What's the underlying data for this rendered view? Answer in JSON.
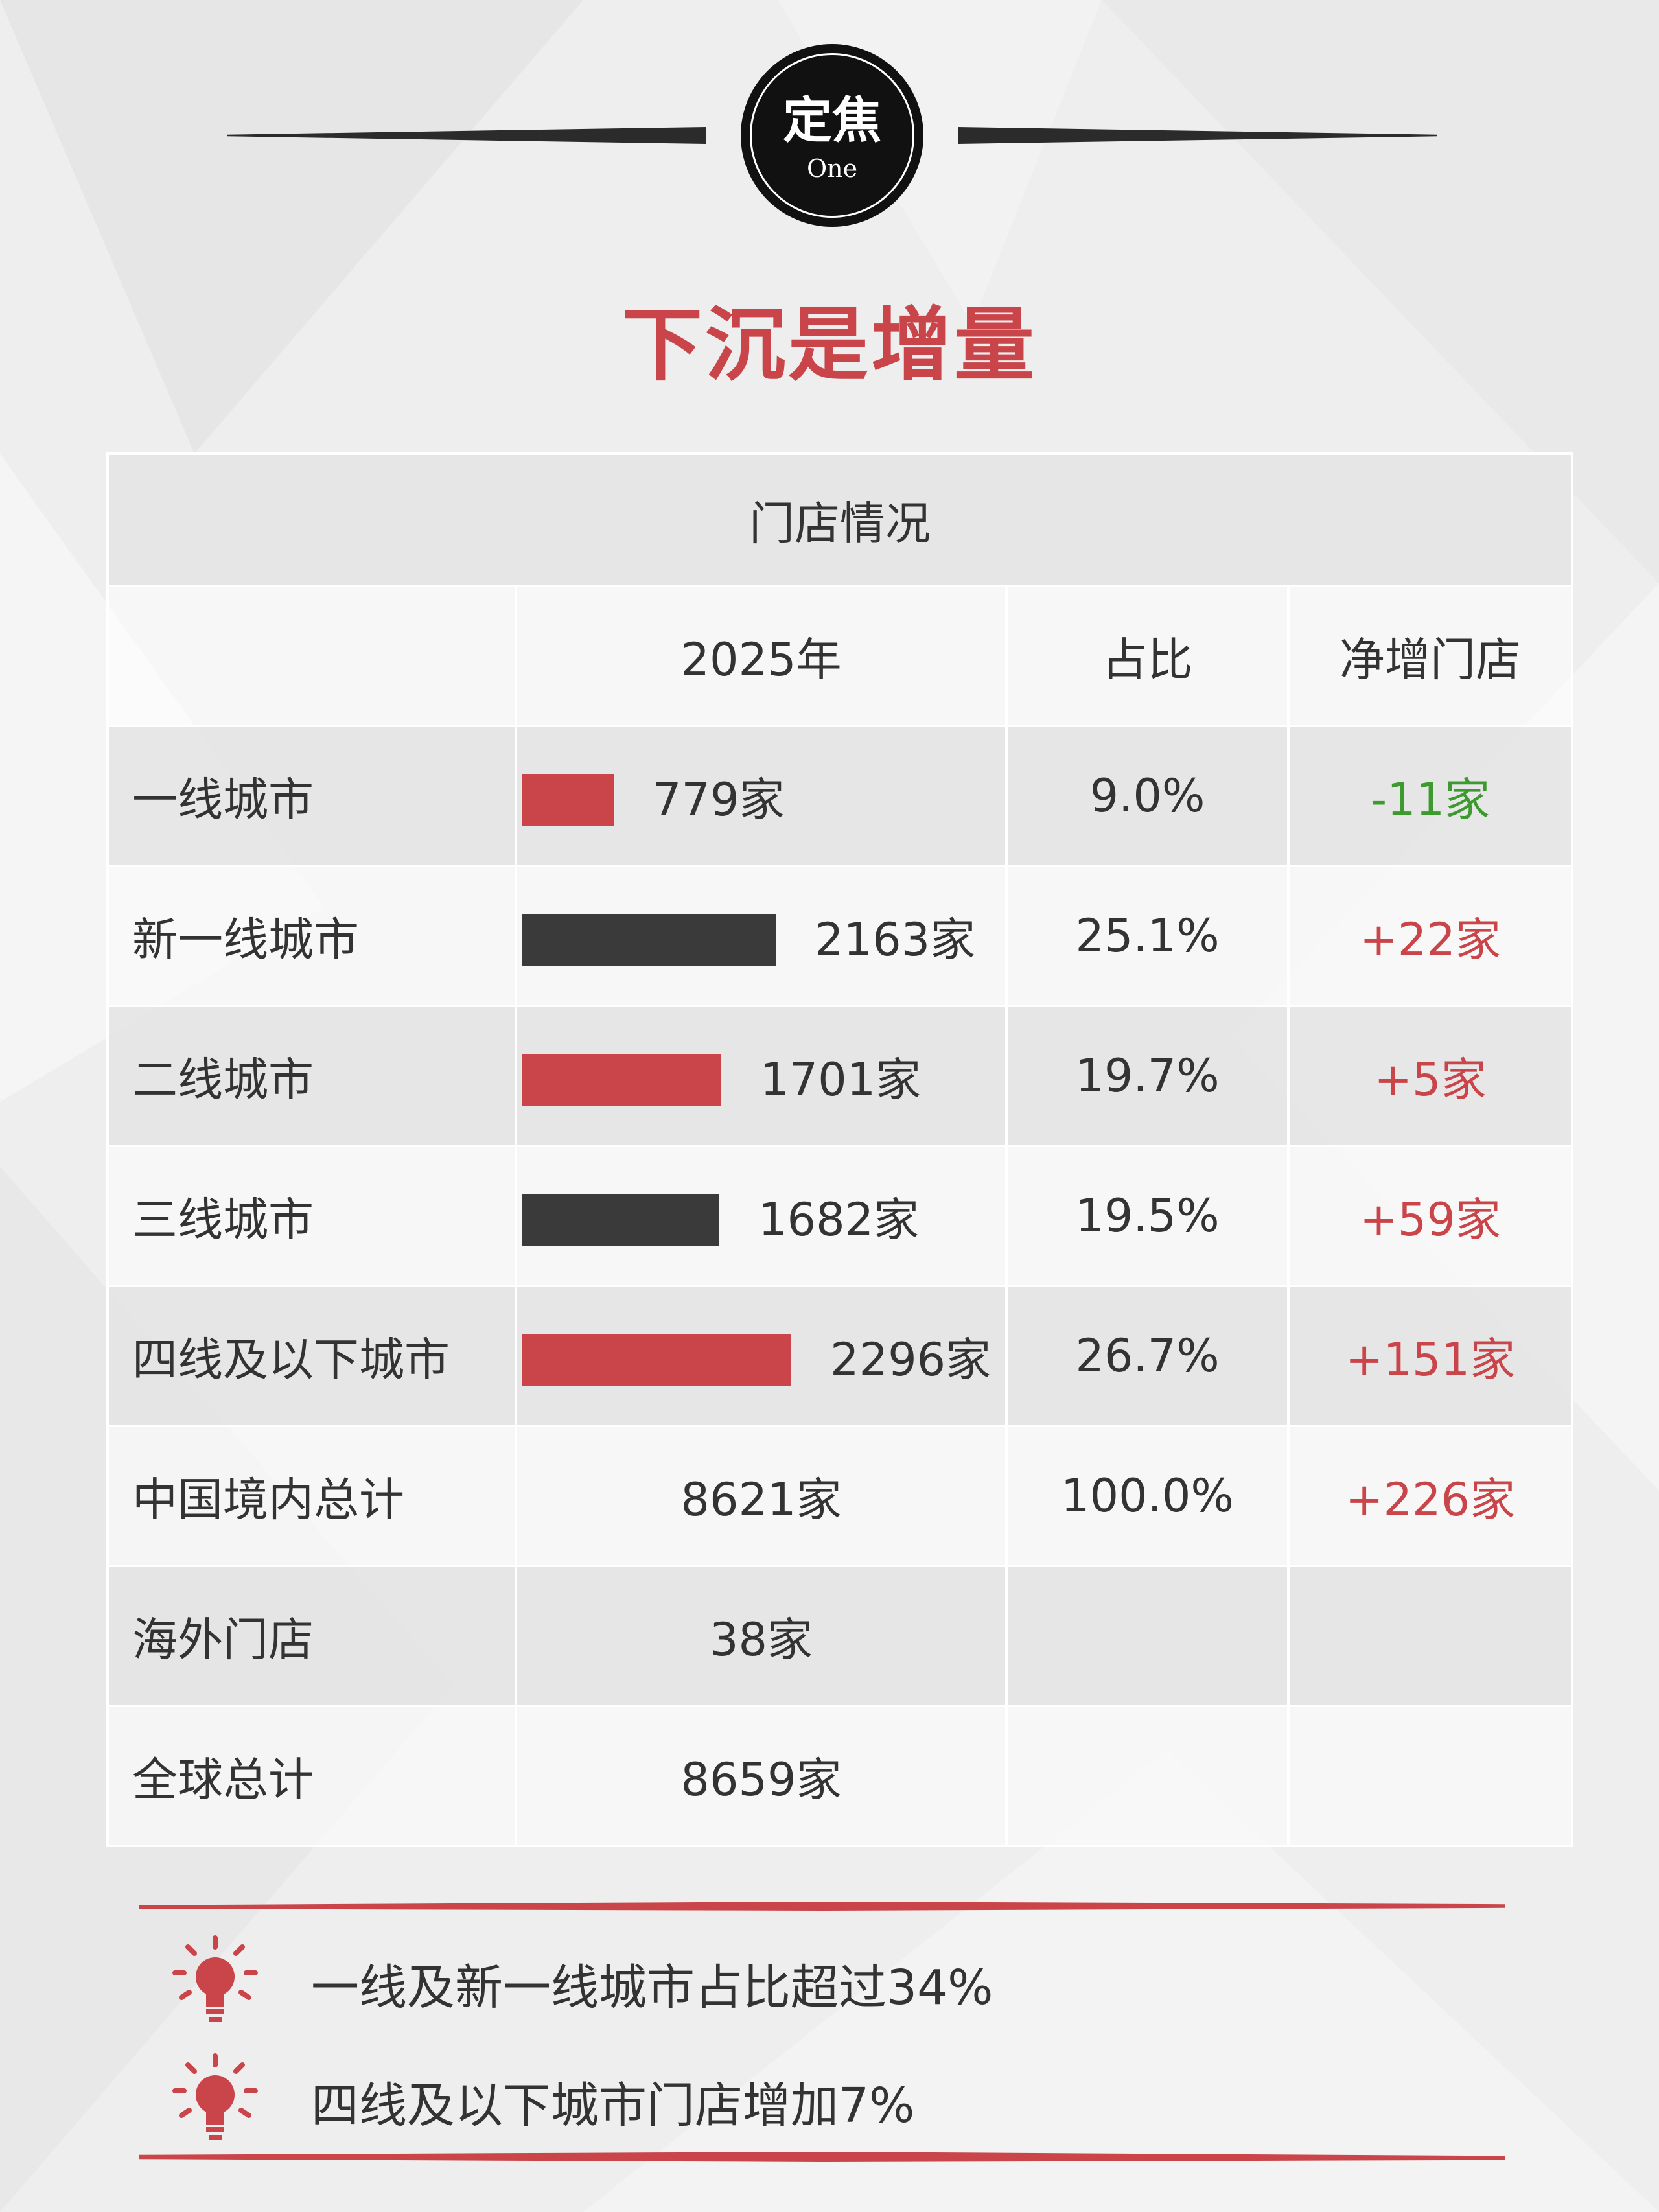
{
  "header": {
    "badge_title": "定焦",
    "badge_subtitle": "One",
    "main_title": "下沉是增量"
  },
  "table": {
    "caption": "门店情况",
    "columns": [
      "",
      "2025年",
      "占比",
      "净增门店"
    ],
    "rows": [
      {
        "label": "一线城市",
        "stores": "779家",
        "count": 779,
        "bar_color": "#c9454a",
        "share": "9.0%",
        "net": "-11家",
        "net_color": "#3d9a2e"
      },
      {
        "label": "新一线城市",
        "stores": "2163家",
        "count": 2163,
        "bar_color": "#3a3a3a",
        "share": "25.1%",
        "net": "+22家",
        "net_color": "#c9454a"
      },
      {
        "label": "二线城市",
        "stores": "1701家",
        "count": 1701,
        "bar_color": "#c9454a",
        "share": "19.7%",
        "net": "+5家",
        "net_color": "#c9454a"
      },
      {
        "label": "三线城市",
        "stores": "1682家",
        "count": 1682,
        "bar_color": "#3a3a3a",
        "share": "19.5%",
        "net": "+59家",
        "net_color": "#c9454a"
      },
      {
        "label": "四线及以下城市",
        "stores": "2296家",
        "count": 2296,
        "bar_color": "#c9454a",
        "share": "26.7%",
        "net": "+151家",
        "net_color": "#c9454a"
      },
      {
        "label": "中国境内总计",
        "stores": "8621家",
        "share": "100.0%",
        "net": "+226家",
        "net_color": "#c9454a"
      },
      {
        "label": "海外门店",
        "stores": "38家",
        "share": "",
        "net": ""
      },
      {
        "label": "全球总计",
        "stores": "8659家",
        "share": "",
        "net": ""
      }
    ]
  },
  "notes": [
    {
      "icon": "lightbulb-icon",
      "text": "一线及新一线城市占比超过34%"
    },
    {
      "icon": "lightbulb-icon",
      "text": "四线及以下城市门店增加7%"
    }
  ],
  "colors": {
    "accent": "#c9454a",
    "dark": "#3a3a3a",
    "negative": "#3d9a2e"
  }
}
